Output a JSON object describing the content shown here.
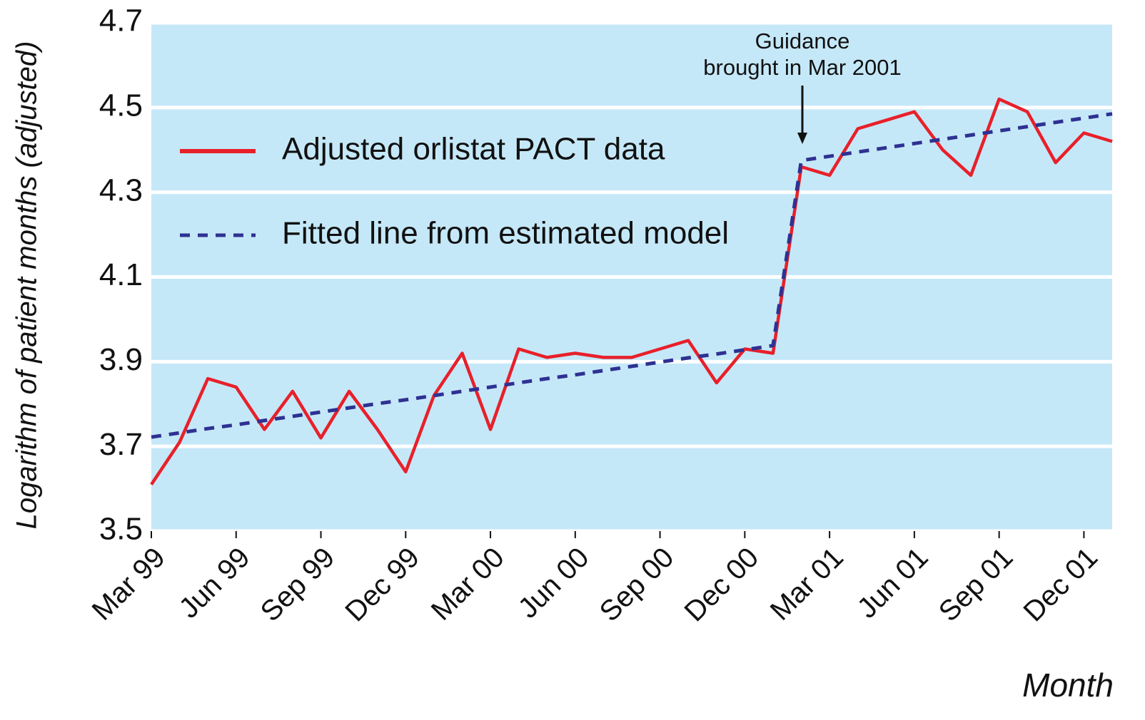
{
  "chart_data": {
    "type": "line",
    "x_label": "Month",
    "y_label": "Logarithm of patient months (adjusted)",
    "annotation": [
      "Guidance",
      "brought in Mar 2001"
    ],
    "categories": [
      "Mar 99",
      null,
      null,
      "Jun 99",
      null,
      null,
      "Sep 99",
      null,
      null,
      "Dec 99",
      null,
      null,
      "Mar 00",
      null,
      null,
      "Jun 00",
      null,
      null,
      "Sep 00",
      null,
      null,
      "Dec 00",
      null,
      null,
      "Mar 01",
      null,
      null,
      "Jun 01",
      null,
      null,
      "Sep 01",
      null,
      null,
      "Dec 01",
      null
    ],
    "series": [
      {
        "name": "Adjusted orlistat PACT data",
        "color": "#e8202a",
        "dash": false,
        "values": [
          3.61,
          3.71,
          3.86,
          3.84,
          3.74,
          3.83,
          3.72,
          3.83,
          3.74,
          3.64,
          3.82,
          3.92,
          3.74,
          3.93,
          3.91,
          3.92,
          3.91,
          3.91,
          3.93,
          3.95,
          3.85,
          3.93,
          3.92,
          4.36,
          4.34,
          4.45,
          4.47,
          4.49,
          4.4,
          4.34,
          4.52,
          4.49,
          4.37,
          4.44,
          4.42
        ]
      },
      {
        "name": "Fitted line from estimated model",
        "color": "#2e3192",
        "dash": true,
        "values": [
          3.722,
          3.732,
          3.742,
          3.751,
          3.761,
          3.771,
          3.781,
          3.791,
          3.801,
          3.81,
          3.82,
          3.83,
          3.84,
          3.85,
          3.86,
          3.869,
          3.879,
          3.889,
          3.899,
          3.909,
          3.918,
          3.928,
          3.938,
          4.375,
          4.385,
          4.395,
          4.405,
          4.415,
          4.425,
          4.435,
          4.445,
          4.455,
          4.465,
          4.475,
          4.485
        ]
      }
    ],
    "ylim": [
      3.5,
      4.7
    ],
    "yticks": [
      3.5,
      3.7,
      3.9,
      4.1,
      4.3,
      4.5,
      4.7
    ],
    "grid": true,
    "background": "#c5e8f8",
    "legend": "upper left"
  }
}
